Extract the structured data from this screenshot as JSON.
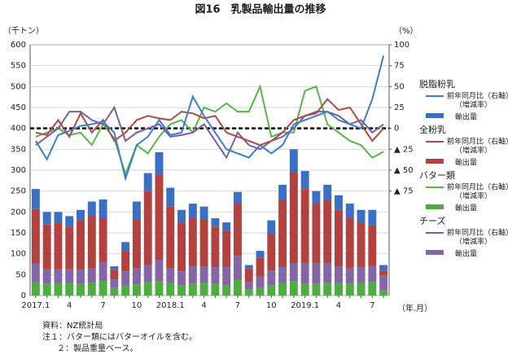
{
  "chart_data": {
    "type": "bar_line",
    "title": "図16　乳製品輸出量の推移",
    "y_label": "（千トン）",
    "y2_label": "（%）",
    "x_label": "（年.月）",
    "categories": [
      "2017.1",
      null,
      null,
      "4",
      null,
      null,
      "7",
      null,
      null,
      "10",
      null,
      null,
      "2018.1",
      null,
      null,
      "4",
      null,
      null,
      "7",
      null,
      null,
      "10",
      null,
      null,
      "2019.1",
      null,
      null,
      "4",
      null,
      null,
      "7",
      null
    ],
    "ylim": [
      0,
      600
    ],
    "yticks": [
      0,
      50,
      100,
      150,
      200,
      250,
      300,
      350,
      400,
      450,
      500,
      550,
      600
    ],
    "y2lim": [
      -200,
      100
    ],
    "y2ticks": [
      100,
      75,
      50,
      25,
      0,
      {
        "value": -25,
        "label": "▲ 25"
      },
      {
        "value": -50,
        "label": "▲ 50"
      },
      {
        "value": -75,
        "label": "▲ 75"
      }
    ],
    "grid": true,
    "bar_series": [
      {
        "group": "バター類",
        "name": "輸出量",
        "color": "#4cae3e",
        "values": [
          32,
          28,
          30,
          30,
          28,
          30,
          35,
          18,
          22,
          27,
          32,
          35,
          30,
          25,
          28,
          30,
          28,
          25,
          38,
          15,
          18,
          25,
          30,
          35,
          28,
          28,
          30,
          30,
          28,
          30,
          32,
          12
        ]
      },
      {
        "group": "チーズ",
        "name": "輸出量",
        "color": "#8466a8",
        "values": [
          45,
          35,
          33,
          33,
          34,
          35,
          45,
          22,
          36,
          38,
          41,
          50,
          35,
          33,
          42,
          40,
          40,
          43,
          57,
          18,
          27,
          35,
          38,
          43,
          50,
          50,
          48,
          40,
          37,
          38,
          38,
          36
        ]
      },
      {
        "group": "全粉乳",
        "name": "輸出量",
        "color": "#b3413f",
        "values": [
          130,
          107,
          112,
          102,
          118,
          125,
          105,
          22,
          49,
          118,
          177,
          205,
          148,
          117,
          115,
          113,
          97,
          87,
          125,
          32,
          45,
          88,
          160,
          217,
          177,
          142,
          150,
          135,
          120,
          107,
          98,
          12
        ]
      },
      {
        "group": "脱脂粉乳",
        "name": "輸出量",
        "color": "#3b6fc3",
        "values": [
          48,
          30,
          25,
          25,
          25,
          35,
          45,
          8,
          21,
          42,
          43,
          53,
          45,
          30,
          35,
          30,
          20,
          20,
          28,
          8,
          17,
          32,
          37,
          55,
          43,
          30,
          37,
          35,
          35,
          30,
          37,
          13
        ]
      }
    ],
    "line_series": [
      {
        "group": "バター類",
        "name": "前年同月比（右軸）",
        "note": "（増減率）",
        "axis": "y2",
        "color": "#55b845",
        "values": [
          -10,
          -5,
          0,
          -8,
          -5,
          -20,
          5,
          -12,
          -55,
          -20,
          -30,
          -10,
          5,
          10,
          -5,
          25,
          20,
          30,
          20,
          20,
          50,
          -10,
          -5,
          -5,
          45,
          50,
          5,
          -5,
          -15,
          -20,
          -35,
          -28
        ]
      },
      {
        "group": "チーズ",
        "name": "前年同月比（右軸）",
        "note": "（増減率）",
        "axis": "y2",
        "color": "#7b5ea7",
        "values": [
          -20,
          -10,
          0,
          20,
          20,
          10,
          5,
          25,
          -15,
          -5,
          0,
          5,
          -10,
          -8,
          -5,
          5,
          -15,
          -35,
          -5,
          -20,
          -25,
          -15,
          -10,
          0,
          15,
          20,
          20,
          15,
          5,
          10,
          -5,
          5
        ]
      },
      {
        "group": "全粉乳",
        "name": "前年同月比（右軸）",
        "note": "（増減率）",
        "axis": "y2",
        "color": "#b04a45",
        "values": [
          -5,
          -8,
          10,
          -10,
          18,
          -5,
          10,
          -15,
          -5,
          10,
          15,
          12,
          10,
          20,
          18,
          12,
          15,
          -5,
          -10,
          -15,
          -20,
          -15,
          -5,
          10,
          15,
          18,
          35,
          22,
          25,
          5,
          -15,
          0
        ]
      },
      {
        "group": "脱脂粉乳",
        "name": "前年同月比（右軸）",
        "note": "（増減率）",
        "axis": "y2",
        "color": "#3d7dd0",
        "values": [
          -15,
          -37,
          -8,
          -3,
          3,
          5,
          8,
          -5,
          -60,
          -20,
          -10,
          10,
          -8,
          -5,
          38,
          15,
          -5,
          -25,
          -30,
          -35,
          -20,
          -30,
          -20,
          5,
          10,
          15,
          20,
          10,
          5,
          0,
          35,
          87
        ]
      }
    ],
    "notes": [
      "資料：NZ統計局",
      "注１：バター類にはバターオイルを含む。",
      "２：製品重量ベース。"
    ]
  }
}
